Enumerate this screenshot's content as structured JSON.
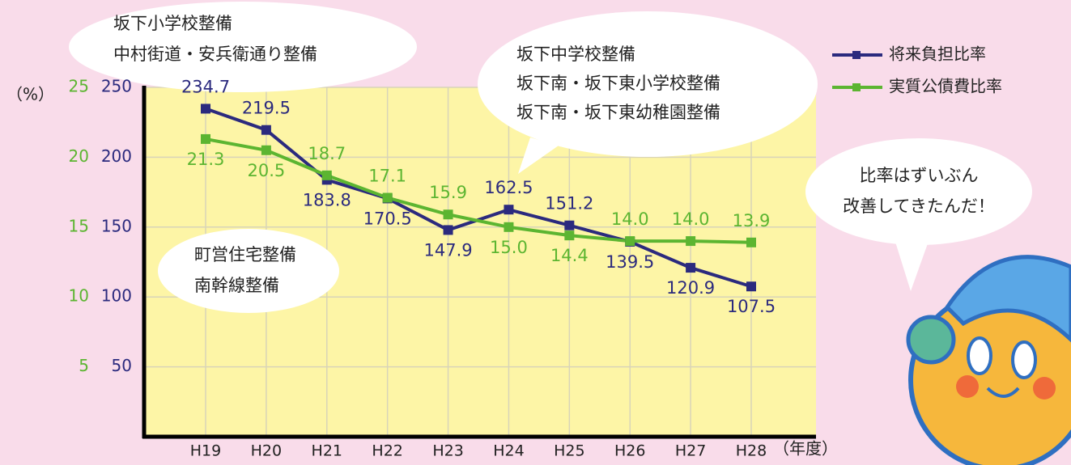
{
  "chart_data": {
    "type": "line",
    "y_label": "（%）",
    "x_label": "（年度）",
    "categories": [
      "H19",
      "H20",
      "H21",
      "H22",
      "H23",
      "H24",
      "H25",
      "H26",
      "H27",
      "H28"
    ],
    "series": [
      {
        "name": "将来負担比率",
        "color": "#2b2a7e",
        "values": [
          234.7,
          219.5,
          183.8,
          170.5,
          147.9,
          162.5,
          151.2,
          139.5,
          120.9,
          107.5
        ]
      },
      {
        "name": "実質公債費比率",
        "color": "#5cb531",
        "axis": "y2",
        "values": [
          21.3,
          20.5,
          18.7,
          17.1,
          15.9,
          15.0,
          14.4,
          14.0,
          14.0,
          13.9
        ],
        "value_labels": [
          "21.3",
          "20.5",
          "18.7",
          "17.1",
          "15.9",
          "15.0",
          "14.4",
          "14.0",
          "14.0",
          "13.9"
        ]
      }
    ],
    "ylim": [
      0,
      250
    ],
    "yticks": [
      50,
      100,
      150,
      200,
      250
    ],
    "y2lim": [
      0,
      25
    ],
    "y2ticks": [
      5,
      10,
      15,
      20,
      25
    ],
    "grid": true,
    "annotations": [
      [
        "坂下小学校整備",
        "中村街道・安兵衛通り整備"
      ],
      [
        "坂下中学校整備",
        "坂下南・坂下東小学校整備",
        "坂下南・坂下東幼稚園整備"
      ],
      [
        "町営住宅整備",
        "南幹線整備"
      ],
      [
        "比率はずいぶん",
        "改善してきたんだ！"
      ]
    ]
  }
}
